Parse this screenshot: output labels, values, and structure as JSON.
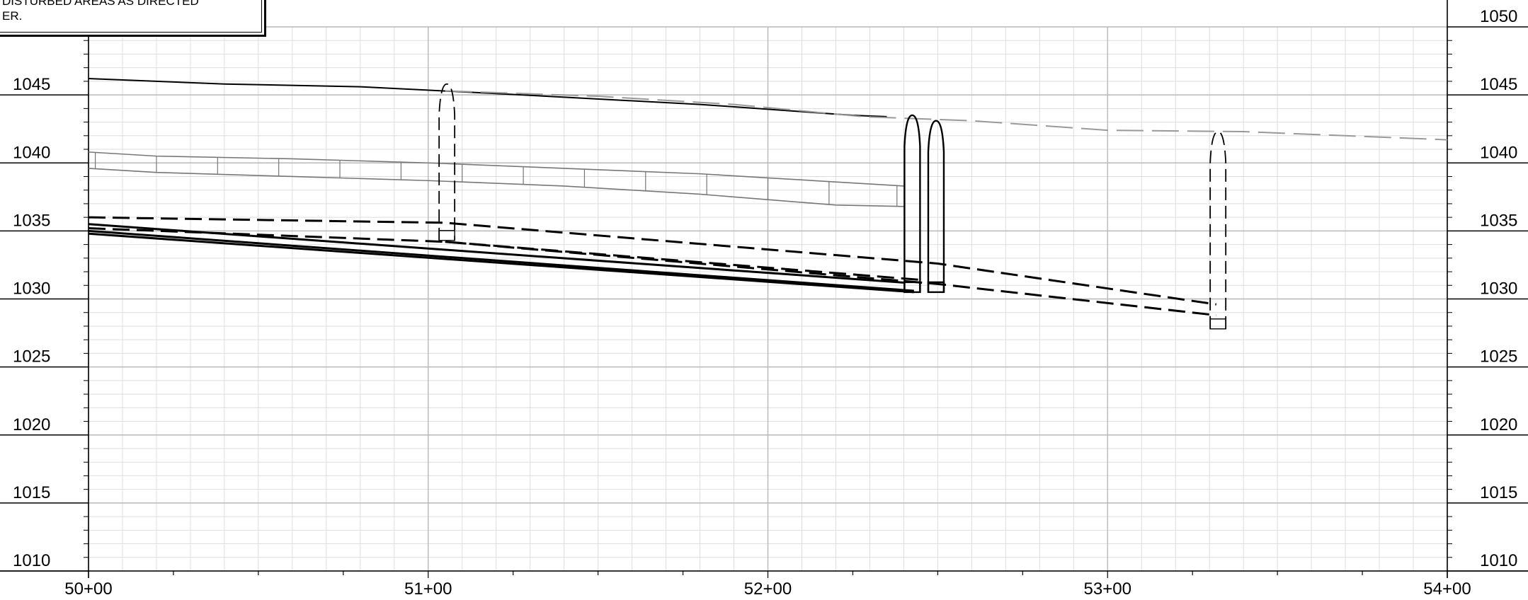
{
  "note": {
    "line1": "DISTURBED AREAS AS DIRECTED",
    "line2": "ER."
  },
  "chart_data": {
    "type": "profile",
    "title": "",
    "xlabel": "",
    "ylabel": "",
    "x_range": [
      5000,
      5400
    ],
    "y_range": [
      1010,
      1050
    ],
    "x_tick_labels": [
      {
        "x": 5000,
        "label": "50+00"
      },
      {
        "x": 5100,
        "label": "51+00"
      },
      {
        "x": 5200,
        "label": "52+00"
      },
      {
        "x": 5300,
        "label": "53+00"
      },
      {
        "x": 5400,
        "label": "54+00"
      }
    ],
    "y_tick_labels": [
      1010,
      1015,
      1020,
      1025,
      1030,
      1035,
      1040,
      1045,
      1050
    ],
    "grid": true,
    "series": [
      {
        "style": "existing-ground-solid",
        "points": [
          [
            5000,
            1046.2
          ],
          [
            5040,
            1045.8
          ],
          [
            5080,
            1045.6
          ],
          [
            5120,
            1045.1
          ],
          [
            5180,
            1044.3
          ],
          [
            5225,
            1043.5
          ],
          [
            5235,
            1043.4
          ]
        ]
      },
      {
        "style": "proposed-ground-dashed",
        "points": [
          [
            5105,
            1045.3
          ],
          [
            5150,
            1044.9
          ],
          [
            5190,
            1044.3
          ],
          [
            5228,
            1043.4
          ],
          [
            5260,
            1043.1
          ],
          [
            5300,
            1042.4
          ],
          [
            5340,
            1042.3
          ],
          [
            5400,
            1041.7
          ]
        ]
      },
      {
        "style": "pipe-solid",
        "points": [
          [
            5000,
            1035.5
          ],
          [
            5240,
            1031.2
          ]
        ]
      },
      {
        "style": "pipe-solid",
        "points": [
          [
            5000,
            1035.0
          ],
          [
            5243,
            1030.6
          ]
        ]
      },
      {
        "style": "pipe-solid",
        "points": [
          [
            5000,
            1034.8
          ],
          [
            5243,
            1030.5
          ]
        ]
      },
      {
        "style": "pipe-dashed",
        "points": [
          [
            5000,
            1036.0
          ],
          [
            5105,
            1035.6
          ],
          [
            5250,
            1032.6
          ],
          [
            5332,
            1029.6
          ]
        ]
      },
      {
        "style": "pipe-dashed",
        "points": [
          [
            5000,
            1035.2
          ],
          [
            5105,
            1034.2
          ],
          [
            5250,
            1031.1
          ],
          [
            5332,
            1028.8
          ]
        ]
      },
      {
        "style": "pipe-dashed",
        "points": [
          [
            5105,
            1034.2
          ],
          [
            5245,
            1031.4
          ]
        ]
      }
    ],
    "structures": [
      {
        "station": 5105.5,
        "top": 1045.8,
        "bottom": 1034.3,
        "style": "dashed-manhole"
      },
      {
        "station": 5242.5,
        "top": 1043.5,
        "bottom": 1030.5,
        "style": "solid-manhole"
      },
      {
        "station": 5249.5,
        "top": 1043.1,
        "bottom": 1030.5,
        "style": "solid-manhole"
      },
      {
        "station": 5332.5,
        "top": 1042.3,
        "bottom": 1027.8,
        "style": "dashed-manhole"
      }
    ],
    "ladder": {
      "top": [
        [
          5000,
          1040.8
        ],
        [
          5020,
          1040.5
        ],
        [
          5060,
          1040.3
        ],
        [
          5100,
          1040.0
        ],
        [
          5140,
          1039.6
        ],
        [
          5180,
          1039.2
        ],
        [
          5200,
          1038.9
        ],
        [
          5220,
          1038.6
        ],
        [
          5240,
          1038.3
        ]
      ],
      "bottom": [
        [
          5000,
          1039.6
        ],
        [
          5020,
          1039.3
        ],
        [
          5060,
          1039.0
        ],
        [
          5100,
          1038.7
        ],
        [
          5140,
          1038.3
        ],
        [
          5180,
          1037.7
        ],
        [
          5200,
          1037.3
        ],
        [
          5220,
          1036.9
        ],
        [
          5240,
          1036.8
        ]
      ],
      "rungs": [
        5002,
        5020,
        5038,
        5056,
        5074,
        5092,
        5110,
        5128,
        5146,
        5164,
        5182,
        5200,
        5218,
        5238
      ]
    }
  }
}
